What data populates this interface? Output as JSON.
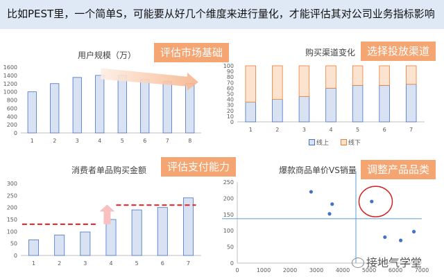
{
  "header": {
    "text": "比如PEST里，一个简单S，可能要从好几个维度来进行量化，才能评估其对公司业务指标影响"
  },
  "watermark": {
    "text": "接地气学堂",
    "icon": "wechat-icon"
  },
  "colors": {
    "bar_fill": "#d9e2f3",
    "bar_stroke": "#4472c4",
    "stacked_top_fill": "#fbe3d0",
    "stacked_top_stroke": "#ed7d31",
    "tag_bg": "#f5a572",
    "dot": "#4472c4",
    "dashed_line": "#e02020",
    "circle": "#d42020",
    "header_bg": "#dfe9f6"
  },
  "chart_data": [
    {
      "type": "bar",
      "title": "用户规模（万）",
      "tag": "评估市场基础",
      "categories": [
        "1",
        "2",
        "3",
        "4",
        "5",
        "6",
        "7",
        "8"
      ],
      "values": [
        1000,
        1200,
        1350,
        1400,
        1400,
        1300,
        1250,
        1200
      ],
      "ylim": [
        0,
        1600
      ],
      "yticks": [
        "0",
        "200",
        "400",
        "600",
        "800",
        "1000",
        "1200",
        "1400",
        "1600"
      ],
      "annotation": "downward-trend-arrow"
    },
    {
      "type": "bar",
      "stacked": true,
      "title": "购买渠道变化",
      "tag": "选择投放渠道",
      "categories": [
        "1",
        "2",
        "3",
        "4",
        "5",
        "6",
        "7"
      ],
      "series": [
        {
          "name": "线上",
          "values": [
            35,
            40,
            45,
            60,
            65,
            65,
            67
          ]
        },
        {
          "name": "线下",
          "values": [
            65,
            60,
            55,
            40,
            35,
            35,
            33
          ]
        }
      ],
      "ylim": [
        0,
        100
      ],
      "yticks": [
        "0",
        "10",
        "20",
        "30",
        "40",
        "50",
        "60",
        "70",
        "80",
        "90",
        "100"
      ],
      "legend": "bottom"
    },
    {
      "type": "bar",
      "title": "消费者单品购买金额",
      "tag": "评估支付能力",
      "categories": [
        "1",
        "2",
        "3",
        "4",
        "5",
        "6",
        "7"
      ],
      "values": [
        65,
        85,
        98,
        150,
        190,
        200,
        240
      ],
      "ylim": [
        0,
        300
      ],
      "yticks": [
        "0",
        "50",
        "100",
        "150",
        "200",
        "250",
        "300"
      ],
      "annotation": "dashed-level-lines-with-upward-arrow"
    },
    {
      "type": "scatter",
      "title": "爆款商品单价VS销量",
      "tag": "调整产品品类",
      "x": [
        2800,
        3600,
        3500,
        5100,
        5600,
        6200,
        6700
      ],
      "y": [
        220,
        182,
        152,
        190,
        80,
        70,
        97
      ],
      "xlim": [
        0,
        7000
      ],
      "ylim": [
        0,
        250
      ],
      "xticks": [
        "0",
        "1000",
        "2000",
        "3000",
        "4000",
        "5000",
        "6000",
        "7000"
      ],
      "yticks": [
        "0",
        "50",
        "100",
        "150",
        "200",
        "250"
      ],
      "reference_lines": {
        "x": 4500,
        "y": 137
      },
      "highlight": "red-circle-around-high-price-high-sales-point"
    }
  ]
}
